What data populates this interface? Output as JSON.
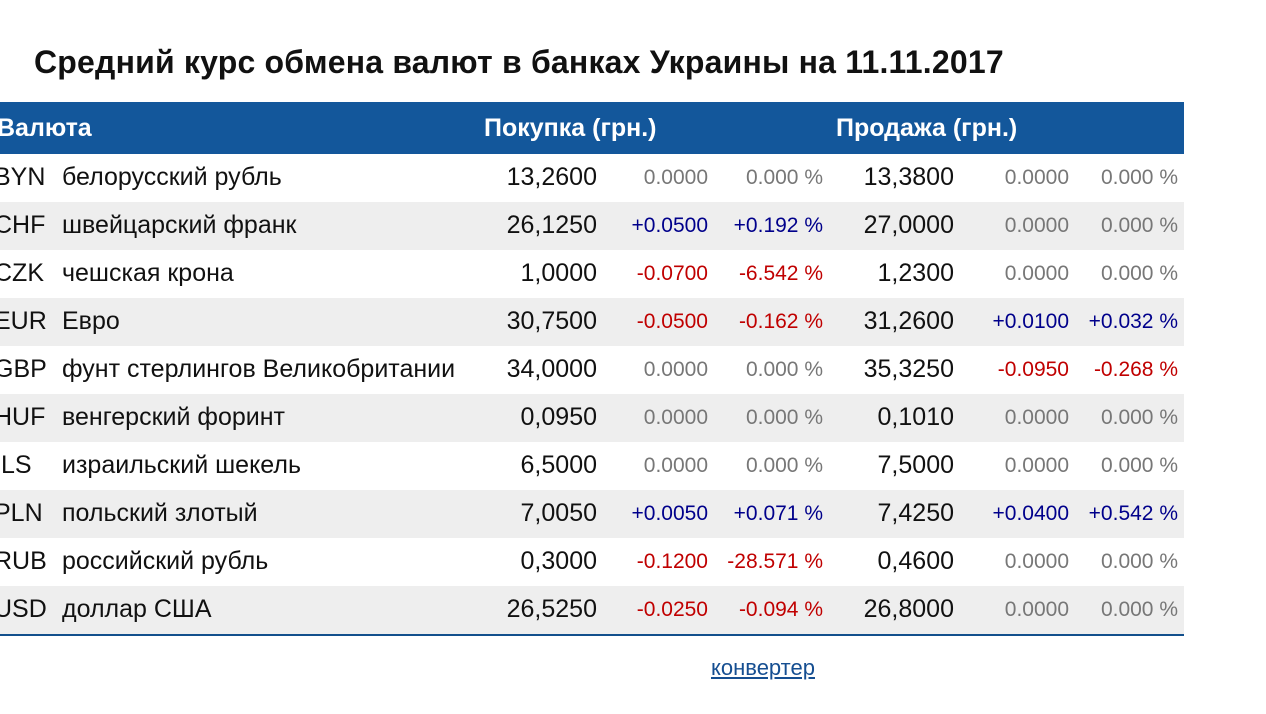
{
  "title": "Средний курс обмена валют в банках Украины на 11.11.2017",
  "table": {
    "headers": {
      "currency": "Валюта",
      "buy": "Покупка (грн.)",
      "sell": "Продажа (грн.)"
    },
    "rows": [
      {
        "code": "BYN",
        "name": "белорусский рубль",
        "buy": "13,2600",
        "buy_change": "0.0000",
        "buy_pct": "0.000 %",
        "buy_dir": "neutral",
        "sell": "13,3800",
        "sell_change": "0.0000",
        "sell_pct": "0.000 %",
        "sell_dir": "neutral"
      },
      {
        "code": "CHF",
        "name": "швейцарский франк",
        "buy": "26,1250",
        "buy_change": "+0.0500",
        "buy_pct": "+0.192 %",
        "buy_dir": "up",
        "sell": "27,0000",
        "sell_change": "0.0000",
        "sell_pct": "0.000 %",
        "sell_dir": "neutral"
      },
      {
        "code": "CZK",
        "name": "чешская крона",
        "buy": "1,0000",
        "buy_change": "-0.0700",
        "buy_pct": "-6.542 %",
        "buy_dir": "down",
        "sell": "1,2300",
        "sell_change": "0.0000",
        "sell_pct": "0.000 %",
        "sell_dir": "neutral"
      },
      {
        "code": "EUR",
        "name": "Евро",
        "buy": "30,7500",
        "buy_change": "-0.0500",
        "buy_pct": "-0.162 %",
        "buy_dir": "down",
        "sell": "31,2600",
        "sell_change": "+0.0100",
        "sell_pct": "+0.032 %",
        "sell_dir": "up"
      },
      {
        "code": "GBP",
        "name": "фунт стерлингов Великобритании",
        "buy": "34,0000",
        "buy_change": "0.0000",
        "buy_pct": "0.000 %",
        "buy_dir": "neutral",
        "sell": "35,3250",
        "sell_change": "-0.0950",
        "sell_pct": "-0.268 %",
        "sell_dir": "down"
      },
      {
        "code": "HUF",
        "name": "венгерский форинт",
        "buy": "0,0950",
        "buy_change": "0.0000",
        "buy_pct": "0.000 %",
        "buy_dir": "neutral",
        "sell": "0,1010",
        "sell_change": "0.0000",
        "sell_pct": "0.000 %",
        "sell_dir": "neutral"
      },
      {
        "code": "ILS",
        "name": "израильский шекель",
        "buy": "6,5000",
        "buy_change": "0.0000",
        "buy_pct": "0.000 %",
        "buy_dir": "neutral",
        "sell": "7,5000",
        "sell_change": "0.0000",
        "sell_pct": "0.000 %",
        "sell_dir": "neutral"
      },
      {
        "code": "PLN",
        "name": "польский злотый",
        "buy": "7,0050",
        "buy_change": "+0.0050",
        "buy_pct": "+0.071 %",
        "buy_dir": "up",
        "sell": "7,4250",
        "sell_change": "+0.0400",
        "sell_pct": "+0.542 %",
        "sell_dir": "up"
      },
      {
        "code": "RUB",
        "name": "российский рубль",
        "buy": "0,3000",
        "buy_change": "-0.1200",
        "buy_pct": "-28.571 %",
        "buy_dir": "down",
        "sell": "0,4600",
        "sell_change": "0.0000",
        "sell_pct": "0.000 %",
        "sell_dir": "neutral"
      },
      {
        "code": "USD",
        "name": "доллар США",
        "buy": "26,5250",
        "buy_change": "-0.0250",
        "buy_pct": "-0.094 %",
        "buy_dir": "down",
        "sell": "26,8000",
        "sell_change": "0.0000",
        "sell_pct": "0.000 %",
        "sell_dir": "neutral"
      }
    ]
  },
  "converter_link": "конвертер",
  "colors": {
    "header_bg": "#13579b",
    "row_alt_bg": "#eeeeee",
    "up": "#00008b",
    "down": "#c00000",
    "neutral": "#777777",
    "link": "#154e91"
  }
}
